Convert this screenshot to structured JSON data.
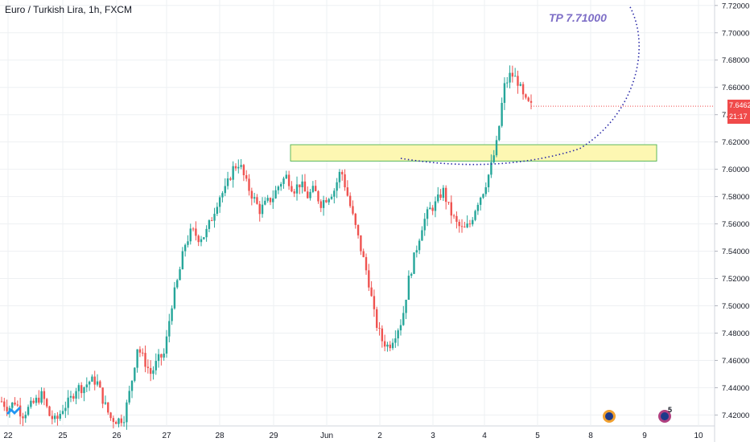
{
  "header": {
    "symbol_title": "Euro / Turkish Lira, 1h, FXCM"
  },
  "annotation": {
    "tp_label": "TP 7.71000"
  },
  "price_badge": {
    "price": "7.64620",
    "countdown": "21:17"
  },
  "events": {
    "count_label": "5"
  },
  "colors": {
    "up": "#26a69a",
    "down": "#ef5350",
    "zone_fill": "#fdf7b2",
    "zone_border": "#5cb85c",
    "path": "#2a2aa8",
    "badge": "#f04a4a",
    "tp": "#7e6fc7"
  },
  "chart_data": {
    "type": "candlestick",
    "x_ticks": [
      "22",
      "25",
      "26",
      "27",
      "28",
      "29",
      "Jun",
      "2",
      "3",
      "4",
      "5",
      "8",
      "9",
      "10"
    ],
    "y_ticks": [
      "7.42000",
      "7.44000",
      "7.46000",
      "7.48000",
      "7.50000",
      "7.52000",
      "7.54000",
      "7.56000",
      "7.58000",
      "7.60000",
      "7.62000",
      "7.64000",
      "7.66000",
      "7.68000",
      "7.70000",
      "7.72000"
    ],
    "ylim": [
      7.412,
      7.724
    ],
    "grid": true,
    "last_price": 7.6462,
    "price_path": [
      7.43,
      7.425,
      7.43,
      7.42,
      7.425,
      7.43,
      7.435,
      7.42,
      7.415,
      7.425,
      7.43,
      7.44,
      7.44,
      7.445,
      7.445,
      7.43,
      7.418,
      7.416,
      7.418,
      7.44,
      7.47,
      7.46,
      7.45,
      7.46,
      7.465,
      7.5,
      7.52,
      7.545,
      7.555,
      7.55,
      7.552,
      7.565,
      7.58,
      7.585,
      7.6,
      7.605,
      7.59,
      7.58,
      7.57,
      7.575,
      7.58,
      7.59,
      7.595,
      7.585,
      7.59,
      7.58,
      7.585,
      7.575,
      7.58,
      7.585,
      7.6,
      7.58,
      7.56,
      7.54,
      7.52,
      7.49,
      7.475,
      7.47,
      7.48,
      7.49,
      7.52,
      7.54,
      7.56,
      7.57,
      7.575,
      7.585,
      7.57,
      7.56,
      7.555,
      7.56,
      7.575,
      7.585,
      7.6,
      7.62,
      7.66,
      7.67,
      7.665,
      7.65,
      7.646
    ],
    "support_zone": {
      "low": 7.606,
      "high": 7.618
    },
    "target_price": 7.71
  }
}
